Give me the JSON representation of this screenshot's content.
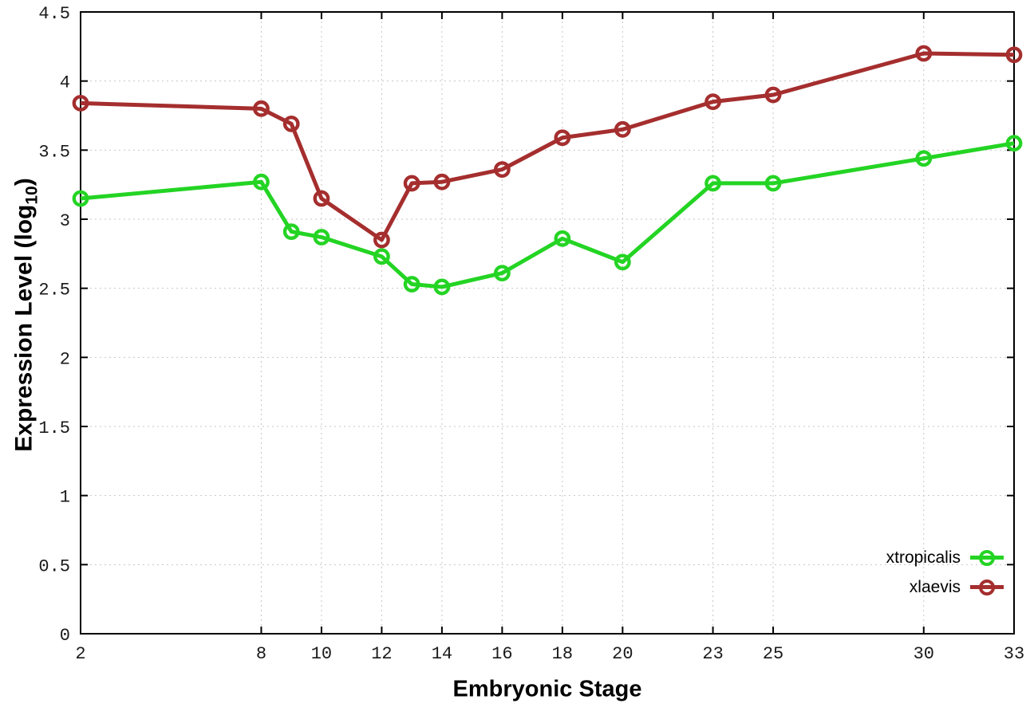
{
  "figure": {
    "background": "#ffffff",
    "axis_color": "#000000",
    "grid_color": "#c6c6c6",
    "tick_label_color": "#1a1a1a"
  },
  "chart_data": {
    "type": "line",
    "title": "",
    "xlabel": "Embryonic Stage",
    "ylabel": "Expression Level (log10)",
    "ylabel_parts": {
      "main": "Expression Level (log",
      "sub": "10",
      "end": ")"
    },
    "xlim": [
      2,
      33
    ],
    "ylim": [
      0,
      4.5
    ],
    "xticks": [
      2,
      8,
      10,
      12,
      14,
      16,
      18,
      20,
      23,
      25,
      30,
      33
    ],
    "yticks": [
      0,
      0.5,
      1,
      1.5,
      2,
      2.5,
      3,
      3.5,
      4,
      4.5
    ],
    "grid": true,
    "legend_position": "inside-bottom-right",
    "x": [
      2,
      8,
      9,
      10,
      12,
      13,
      14,
      16,
      18,
      20,
      23,
      25,
      30,
      33
    ],
    "series": [
      {
        "name": "xtropicalis",
        "color": "#24d424",
        "marker": "open-circle",
        "values": [
          3.15,
          3.27,
          2.91,
          2.87,
          2.73,
          2.53,
          2.51,
          2.61,
          2.86,
          2.69,
          3.26,
          3.26,
          3.44,
          3.55
        ]
      },
      {
        "name": "xlaevis",
        "color": "#a52e2e",
        "marker": "open-circle",
        "values": [
          3.84,
          3.8,
          3.69,
          3.15,
          2.85,
          3.26,
          3.27,
          3.36,
          3.59,
          3.65,
          3.85,
          3.9,
          4.2,
          4.19
        ]
      }
    ]
  }
}
